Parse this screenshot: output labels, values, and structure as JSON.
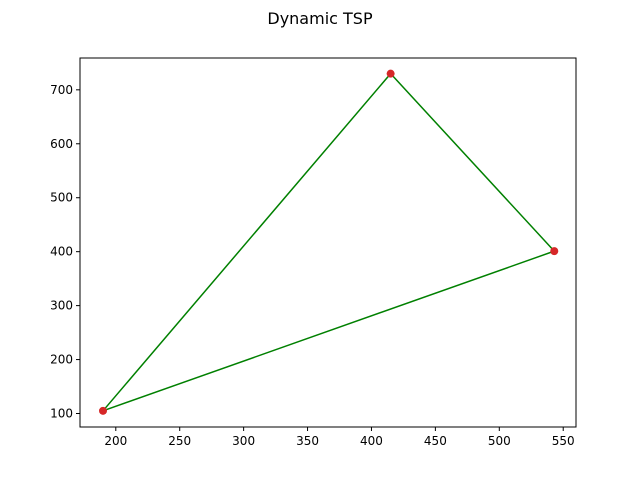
{
  "chart_data": {
    "type": "line",
    "title": "Dynamic TSP",
    "xlabel": "",
    "ylabel": "",
    "xlim": [
      172,
      560
    ],
    "ylim": [
      75,
      759
    ],
    "xticks": [
      200,
      250,
      300,
      350,
      400,
      450,
      500,
      550
    ],
    "yticks": [
      100,
      200,
      300,
      400,
      500,
      600,
      700
    ],
    "grid": false,
    "points": [
      {
        "x": 190,
        "y": 105
      },
      {
        "x": 415,
        "y": 730
      },
      {
        "x": 543,
        "y": 401
      }
    ],
    "route": [
      0,
      1,
      2,
      0
    ],
    "colors": {
      "route": "#008000",
      "point": "#d62728"
    }
  }
}
